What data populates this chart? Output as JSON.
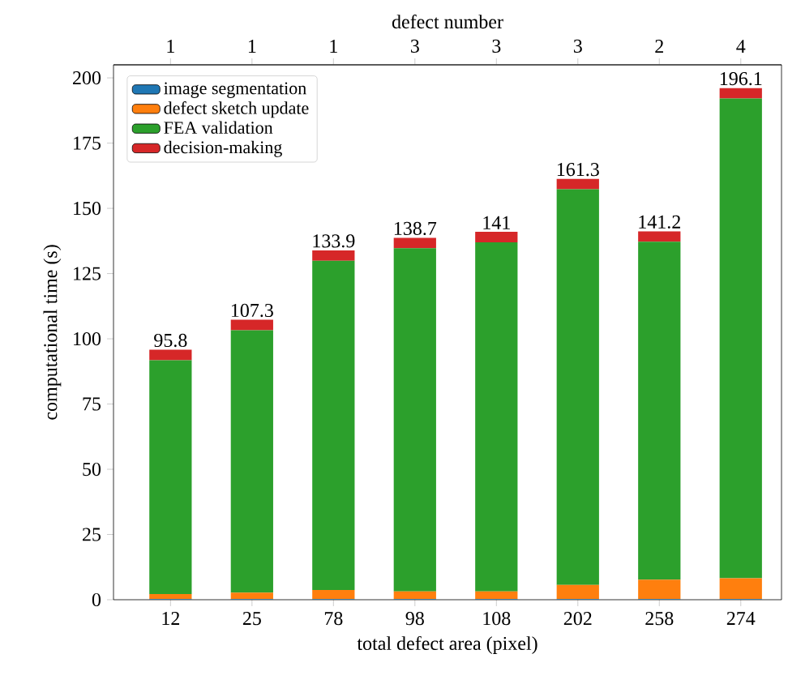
{
  "chart_data": {
    "type": "bar",
    "stacked": true,
    "xlabel": "total defect area (pixel)",
    "ylabel": "computational time (s)",
    "x2label": "defect number",
    "categories": [
      "12",
      "25",
      "78",
      "98",
      "108",
      "202",
      "258",
      "274"
    ],
    "series": [
      {
        "name": "image segmentation",
        "color": "#1f77b4",
        "values": [
          0.2,
          0.2,
          0.2,
          0.2,
          0.2,
          0.2,
          0.2,
          0.2
        ]
      },
      {
        "name": "defect sketch update",
        "color": "#ff7f0e",
        "values": [
          2,
          2.5,
          3.5,
          3,
          3,
          5.5,
          7.5,
          8
        ]
      },
      {
        "name": "FEA validation",
        "color": "#2ca02c",
        "values": [
          89.6,
          100.6,
          126.2,
          131.5,
          133.8,
          151.6,
          129.5,
          183.9
        ]
      },
      {
        "name": "decision-making",
        "color": "#d62728",
        "values": [
          4,
          4,
          4,
          4,
          4,
          4,
          4,
          4
        ]
      }
    ],
    "totals": [
      "95.8",
      "107.3",
      "133.9",
      "138.7",
      "141",
      "161.3",
      "141.2",
      "196.1"
    ],
    "ylim": [
      0,
      205
    ],
    "yticks": [
      0,
      25,
      50,
      75,
      100,
      125,
      150,
      175,
      200
    ],
    "annotations": [
      "1",
      "1",
      "1",
      "3",
      "3",
      "3",
      "2",
      "4"
    ],
    "legend": "top left"
  }
}
